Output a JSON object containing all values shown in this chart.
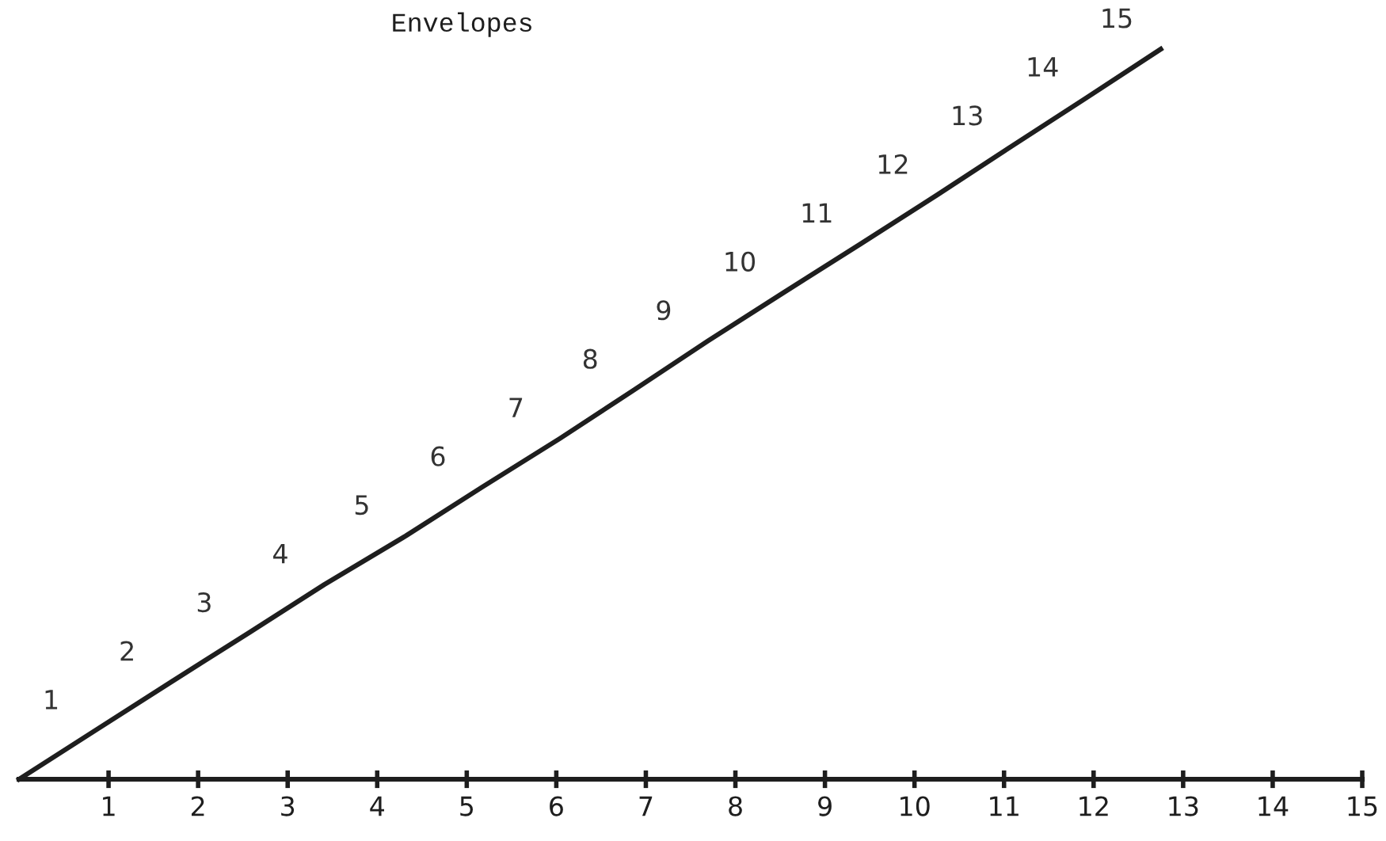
{
  "chart_data": {
    "type": "line",
    "title": "Envelopes",
    "x": [
      0,
      0.85,
      1.7,
      2.56,
      3.41,
      4.32,
      5.17,
      6.04,
      6.87,
      7.69,
      8.54,
      9.4,
      10.25,
      11.08,
      11.92,
      12.75
    ],
    "series": [
      {
        "color": "#1e1e1e",
        "values": [
          0,
          1,
          2,
          3,
          4,
          5,
          6,
          7,
          8,
          9,
          10,
          11,
          12,
          13,
          14,
          15
        ],
        "value_labels": [
          null,
          "1",
          "2",
          "3",
          "4",
          "5",
          "6",
          "7",
          "8",
          "9",
          "10",
          "11",
          "12",
          "13",
          "14",
          "15"
        ]
      }
    ],
    "xlim": [
      0,
      15
    ],
    "xticks": [
      1,
      2,
      3,
      4,
      5,
      6,
      7,
      8,
      9,
      10,
      11,
      12,
      13,
      14,
      15
    ],
    "tick_labels": "x",
    "grid": false,
    "legend": false
  }
}
